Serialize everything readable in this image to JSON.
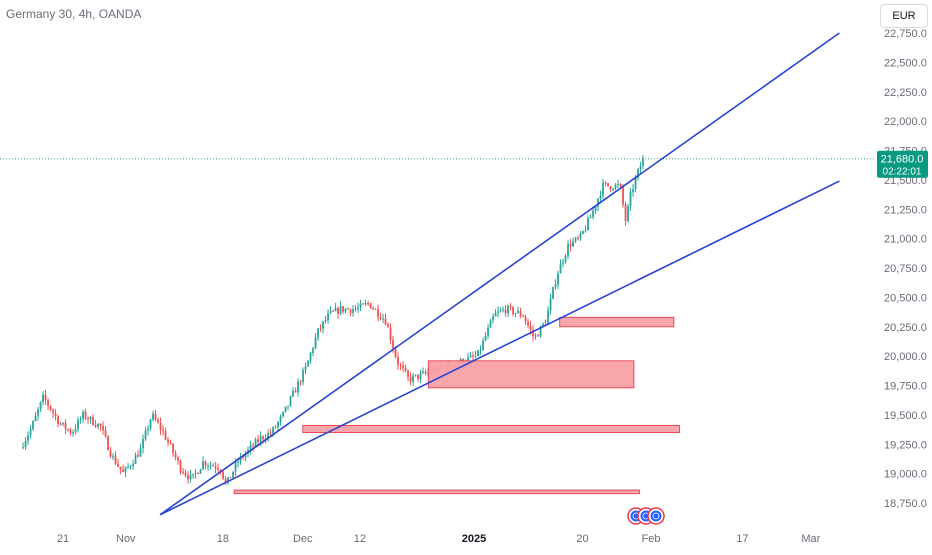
{
  "header": {
    "symbol_title": "Germany 30, 4h, OANDA",
    "currency": "EUR"
  },
  "colors": {
    "trendline": "#2943d1",
    "up_candle": "#26a69a",
    "down_candle": "#ef5350",
    "zone_fill": "#f9a1a6",
    "zone_stroke": "#e84a58",
    "price_badge": "#089981",
    "axis_text": "#6a6d78",
    "price_line": "#26a69a"
  },
  "chart_data": {
    "type": "candlestick",
    "title": "",
    "y_axis": {
      "ticks": [
        "22,750.0",
        "22,500.0",
        "22,250.0",
        "22,000.0",
        "21,750.0",
        "21,500.0",
        "21,250.0",
        "21,000.0",
        "20,750.0",
        "20,500.0",
        "20,250.0",
        "20,000.0",
        "19,750.0",
        "19,500.0",
        "19,250.0",
        "19,000.0",
        "18,750.0"
      ],
      "min": 18650,
      "max": 22850
    },
    "x_axis": {
      "ticks": [
        {
          "label": "21",
          "bold": false
        },
        {
          "label": "Nov",
          "bold": false
        },
        {
          "label": "18",
          "bold": false
        },
        {
          "label": "Dec",
          "bold": false
        },
        {
          "label": "12",
          "bold": false
        },
        {
          "label": "2025",
          "bold": true
        },
        {
          "label": "20",
          "bold": false
        },
        {
          "label": "Feb",
          "bold": false
        },
        {
          "label": "17",
          "bold": false
        },
        {
          "label": "Mar",
          "bold": false
        }
      ]
    },
    "last_price": {
      "value": 21680,
      "label": "21,680.0",
      "countdown": "02:22:01"
    },
    "price_path": [
      [
        "2024-10-14",
        19220
      ],
      [
        "2024-10-16",
        19400
      ],
      [
        "2024-10-18",
        19650
      ],
      [
        "2024-10-21",
        19420
      ],
      [
        "2024-10-23",
        19350
      ],
      [
        "2024-10-25",
        19500
      ],
      [
        "2024-10-28",
        19400
      ],
      [
        "2024-10-30",
        19150
      ],
      [
        "2024-11-01",
        19000
      ],
      [
        "2024-11-04",
        19200
      ],
      [
        "2024-11-06",
        19500
      ],
      [
        "2024-11-08",
        19350
      ],
      [
        "2024-11-11",
        19050
      ],
      [
        "2024-11-13",
        18950
      ],
      [
        "2024-11-15",
        19100
      ],
      [
        "2024-11-18",
        19050
      ],
      [
        "2024-11-19",
        18900
      ],
      [
        "2024-11-21",
        19100
      ],
      [
        "2024-11-25",
        19300
      ],
      [
        "2024-11-27",
        19350
      ],
      [
        "2024-11-29",
        19500
      ],
      [
        "2024-12-03",
        19900
      ],
      [
        "2024-12-05",
        20200
      ],
      [
        "2024-12-07",
        20350
      ],
      [
        "2024-12-09",
        20400
      ],
      [
        "2024-12-12",
        20400
      ],
      [
        "2024-12-14",
        20450
      ],
      [
        "2024-12-17",
        20300
      ],
      [
        "2024-12-19",
        19950
      ],
      [
        "2024-12-21",
        19800
      ],
      [
        "2024-12-24",
        19850
      ],
      [
        "2024-12-27",
        19900
      ],
      [
        "2024-12-30",
        19950
      ],
      [
        "2025-01-02",
        20000
      ],
      [
        "2025-01-05",
        20350
      ],
      [
        "2025-01-07",
        20400
      ],
      [
        "2025-01-10",
        20350
      ],
      [
        "2025-01-12",
        20150
      ],
      [
        "2025-01-14",
        20300
      ],
      [
        "2025-01-16",
        20700
      ],
      [
        "2025-01-18",
        20950
      ],
      [
        "2025-01-20",
        21000
      ],
      [
        "2025-01-22",
        21200
      ],
      [
        "2025-01-24",
        21450
      ],
      [
        "2025-01-27",
        21450
      ],
      [
        "2025-01-28",
        21150
      ],
      [
        "2025-01-29",
        21400
      ],
      [
        "2025-01-31",
        21680
      ]
    ],
    "trendlines": [
      {
        "name": "",
        "from": [
          "2024-11-07",
          18650
        ],
        "to": [
          "2025-03-06",
          22750
        ]
      },
      {
        "name": "",
        "from": [
          "2024-11-07",
          18650
        ],
        "to": [
          "2025-03-06",
          21490
        ]
      }
    ],
    "zones": [
      {
        "name": "",
        "from": "2025-01-16",
        "to": "2025-02-05",
        "top": 20330,
        "bottom": 20250
      },
      {
        "name": "",
        "from": "2024-12-24",
        "to": "2025-01-29",
        "top": 19960,
        "bottom": 19730
      },
      {
        "name": "",
        "from": "2024-12-02",
        "to": "2025-02-06",
        "top": 19410,
        "bottom": 19350
      },
      {
        "name": "",
        "from": "2024-11-20",
        "to": "2025-01-30",
        "top": 18860,
        "bottom": 18830
      }
    ]
  }
}
